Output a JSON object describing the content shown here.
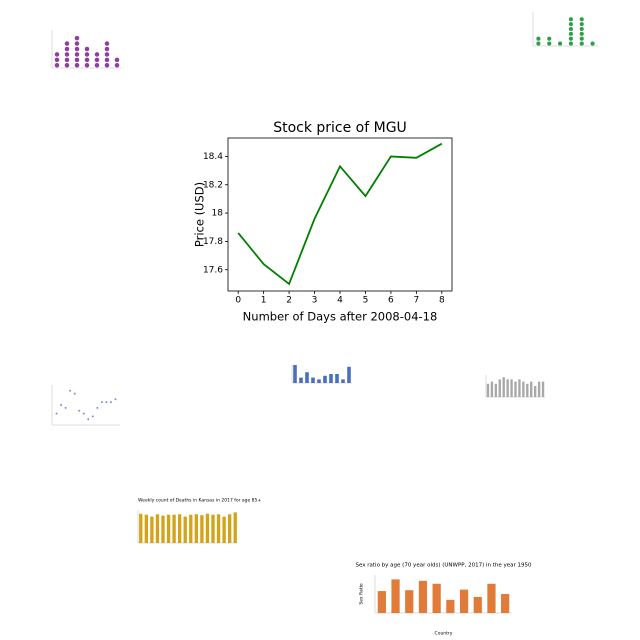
{
  "chart_data": [
    {
      "type": "dot",
      "color": "#8e3fa0",
      "values": [
        3,
        5,
        6,
        4,
        3,
        5,
        2
      ],
      "ylim": [
        0,
        7
      ]
    },
    {
      "type": "dot",
      "color": "#2e9e47",
      "values": [
        2,
        2,
        1,
        6,
        6,
        1
      ],
      "ylim": [
        0,
        7
      ]
    },
    {
      "type": "line",
      "title": "Stock price of MGU",
      "xlabel": "Number of Days after 2008-04-18",
      "ylabel": "Price (USD)",
      "color": "#008000",
      "x": [
        0,
        1,
        2,
        3,
        4,
        5,
        6,
        7,
        8
      ],
      "values": [
        17.86,
        17.64,
        17.5,
        17.96,
        18.33,
        18.12,
        18.4,
        18.39,
        18.49
      ],
      "xlim": [
        -0.4,
        8.4
      ],
      "ylim": [
        17.45,
        18.53
      ],
      "xticks": [
        0,
        1,
        2,
        3,
        4,
        5,
        6,
        7,
        8
      ],
      "yticks": [
        17.6,
        17.8,
        18.0,
        18.2,
        18.4
      ]
    },
    {
      "type": "scatter",
      "color": "#7f8fd6",
      "x": [
        1,
        2,
        3,
        4,
        5,
        6,
        7,
        8,
        9,
        10,
        11,
        12,
        13,
        14
      ],
      "values": [
        4,
        7,
        6,
        12,
        11,
        5,
        4,
        2,
        3,
        6,
        8,
        8,
        8,
        9
      ],
      "xlim": [
        0,
        15
      ],
      "ylim": [
        0,
        14
      ]
    },
    {
      "type": "bar",
      "color": "#4a6fbf",
      "values": [
        10,
        3,
        6,
        3,
        2,
        4,
        5,
        5,
        2,
        9
      ],
      "ylim": [
        0,
        10
      ]
    },
    {
      "type": "bar",
      "color": "#a8a8a8",
      "values": [
        6,
        7,
        6,
        8,
        9,
        8,
        8,
        7,
        8,
        7,
        6,
        7,
        5,
        7,
        7
      ],
      "ylim": [
        0,
        10
      ]
    },
    {
      "type": "bar",
      "title": "Weekly count of Deaths in Kansas in 2017 for age 85+",
      "color": "#d4a418",
      "values": [
        620,
        600,
        560,
        610,
        580,
        600,
        600,
        610,
        560,
        600,
        610,
        590,
        620,
        600,
        610,
        560,
        610,
        650
      ],
      "ylim": [
        0,
        700
      ]
    },
    {
      "type": "bar",
      "title": "Sex ratio by age (70 year olds) (UNWPP, 2017) in the year 1950",
      "xlabel": "Country",
      "ylabel": "Sex Ratio",
      "color": "#e07b39",
      "values": [
        75,
        115,
        78,
        110,
        100,
        45,
        80,
        55,
        100,
        65
      ],
      "ylim": [
        0,
        130
      ]
    }
  ]
}
